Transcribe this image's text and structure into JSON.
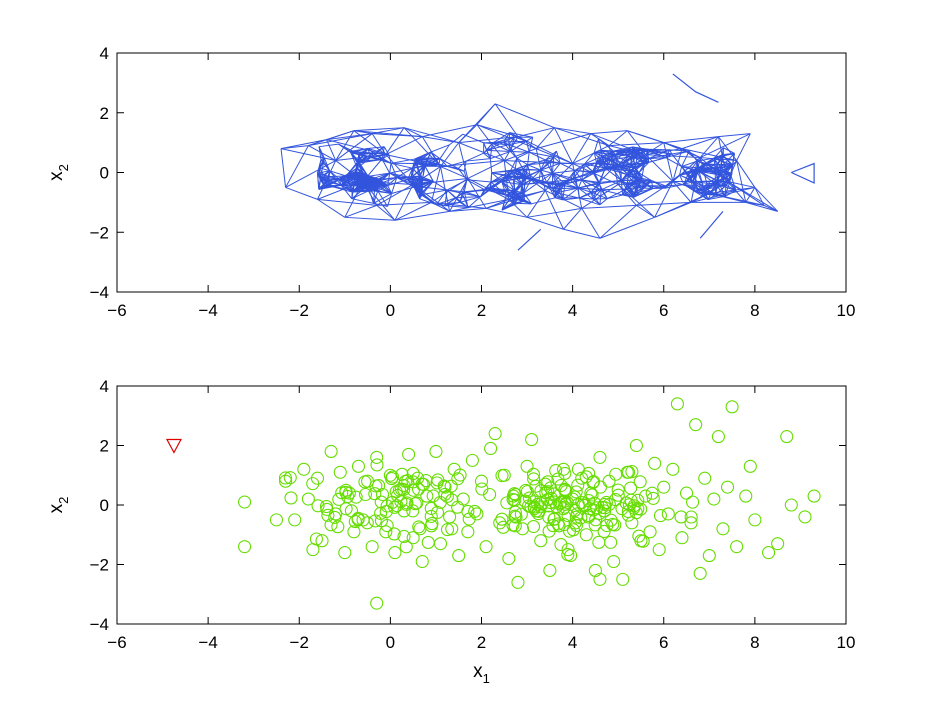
{
  "chart_data": [
    {
      "type": "line",
      "xlabel": "",
      "ylabel": "x_2",
      "xlim": [
        -6,
        10
      ],
      "ylim": [
        -4,
        4
      ],
      "x_ticks": [
        -6,
        -4,
        -2,
        0,
        2,
        4,
        6,
        8,
        10
      ],
      "y_ticks": [
        -4,
        -2,
        0,
        2,
        4
      ],
      "x_tick_labels": [
        "−6",
        "−4",
        "−2",
        "0",
        "2",
        "4",
        "6",
        "8",
        "10"
      ],
      "y_tick_labels": [
        "−4",
        "−2",
        "0",
        "2",
        "4"
      ],
      "ylabel_main": "x",
      "ylabel_sub": "2",
      "series": [
        {
          "color": "#3355dd",
          "marker": "none",
          "description_points": [
            [
              -2.4,
              0.8
            ],
            [
              -2.3,
              -0.5
            ],
            [
              -1.8,
              0.9
            ],
            [
              -1.6,
              -0.9
            ],
            [
              -1.4,
              1.1
            ],
            [
              -1.2,
              0.4
            ],
            [
              -1.0,
              -1.5
            ],
            [
              -0.8,
              1.4
            ],
            [
              -0.6,
              -0.3
            ],
            [
              -0.4,
              1.3
            ],
            [
              -0.3,
              -1.1
            ],
            [
              -0.1,
              0.6
            ],
            [
              0.1,
              -1.6
            ],
            [
              0.3,
              1.5
            ],
            [
              0.5,
              -0.4
            ],
            [
              0.7,
              1.2
            ],
            [
              0.9,
              -1.0
            ],
            [
              1.1,
              0.2
            ],
            [
              1.3,
              -1.3
            ],
            [
              1.5,
              1.0
            ],
            [
              1.7,
              -0.2
            ],
            [
              1.9,
              1.6
            ],
            [
              2.1,
              -1.2
            ],
            [
              2.3,
              2.3
            ],
            [
              2.5,
              0.4
            ],
            [
              2.6,
              -0.9
            ],
            [
              2.8,
              1.2
            ],
            [
              3.0,
              -1.5
            ],
            [
              3.2,
              0.8
            ],
            [
              3.4,
              -0.6
            ],
            [
              3.6,
              1.5
            ],
            [
              3.8,
              -1.9
            ],
            [
              4.0,
              0.3
            ],
            [
              4.2,
              -1.2
            ],
            [
              4.4,
              1.3
            ],
            [
              4.6,
              -2.2
            ],
            [
              4.8,
              0.9
            ],
            [
              5.0,
              -0.4
            ],
            [
              5.2,
              1.4
            ],
            [
              5.4,
              -1.1
            ],
            [
              5.6,
              0.6
            ],
            [
              5.8,
              -1.5
            ],
            [
              6.0,
              1.0
            ],
            [
              6.2,
              -0.3
            ],
            [
              6.4,
              0.8
            ],
            [
              6.6,
              -1.0
            ],
            [
              6.8,
              0.5
            ],
            [
              7.0,
              -0.7
            ],
            [
              7.2,
              1.2
            ],
            [
              7.4,
              -0.3
            ],
            [
              7.6,
              0.4
            ],
            [
              7.8,
              -1.0
            ],
            [
              8.0,
              -0.5
            ],
            [
              8.2,
              -1.1
            ],
            [
              8.5,
              -1.3
            ],
            [
              7.9,
              1.3
            ]
          ],
          "extra_segments": [
            [
              [
                6.2,
                3.3
              ],
              [
                6.7,
                2.7
              ],
              [
                7.2,
                2.35
              ]
            ],
            [
              [
                8.8,
                0.0
              ],
              [
                9.3,
                0.3
              ],
              [
                9.3,
                -0.35
              ],
              [
                8.8,
                0.0
              ]
            ],
            [
              [
                2.8,
                -2.6
              ],
              [
                3.3,
                -1.9
              ]
            ],
            [
              [
                6.8,
                -2.2
              ],
              [
                7.3,
                -1.3
              ]
            ]
          ]
        }
      ]
    },
    {
      "type": "scatter",
      "xlabel": "x_1",
      "xlabel_main": "x",
      "xlabel_sub": "1",
      "ylabel": "x_2",
      "ylabel_main": "x",
      "ylabel_sub": "2",
      "xlim": [
        -6,
        10
      ],
      "ylim": [
        -4,
        4
      ],
      "x_ticks": [
        -6,
        -4,
        -2,
        0,
        2,
        4,
        6,
        8,
        10
      ],
      "y_ticks": [
        -4,
        -2,
        0,
        2,
        4
      ],
      "x_tick_labels": [
        "−6",
        "−4",
        "−2",
        "0",
        "2",
        "4",
        "6",
        "8",
        "10"
      ],
      "y_tick_labels": [
        "−4",
        "−2",
        "0",
        "2",
        "4"
      ],
      "series": [
        {
          "color": "#66dd00",
          "marker": "circle",
          "points": [
            [
              -3.2,
              0.1
            ],
            [
              -3.2,
              -1.4
            ],
            [
              -2.5,
              -0.5
            ],
            [
              -2.3,
              0.8
            ],
            [
              -2.1,
              -0.5
            ],
            [
              -1.9,
              1.2
            ],
            [
              -1.8,
              0.2
            ],
            [
              -1.7,
              -1.5
            ],
            [
              -1.6,
              0.9
            ],
            [
              -1.5,
              -1.2
            ],
            [
              -1.3,
              1.8
            ],
            [
              -1.2,
              -0.3
            ],
            [
              -1.1,
              1.1
            ],
            [
              -1.0,
              -1.6
            ],
            [
              -0.9,
              0.4
            ],
            [
              -0.8,
              -0.9
            ],
            [
              -0.7,
              1.3
            ],
            [
              -0.6,
              -0.5
            ],
            [
              -0.5,
              0.8
            ],
            [
              -0.4,
              -1.4
            ],
            [
              -0.3,
              1.6
            ],
            [
              -0.3,
              -3.3
            ],
            [
              -0.2,
              0.1
            ],
            [
              -0.1,
              -0.9
            ],
            [
              0.0,
              1.0
            ],
            [
              0.1,
              -1.6
            ],
            [
              0.2,
              0.5
            ],
            [
              0.3,
              -0.2
            ],
            [
              0.4,
              1.7
            ],
            [
              0.5,
              -1.1
            ],
            [
              0.6,
              0.9
            ],
            [
              0.7,
              -1.9
            ],
            [
              0.8,
              0.3
            ],
            [
              0.9,
              -0.7
            ],
            [
              1.0,
              1.8
            ],
            [
              1.1,
              -1.3
            ],
            [
              1.2,
              0.6
            ],
            [
              1.3,
              -0.4
            ],
            [
              1.4,
              1.2
            ],
            [
              1.5,
              -1.7
            ],
            [
              1.6,
              0.2
            ],
            [
              1.7,
              -0.9
            ],
            [
              1.8,
              1.5
            ],
            [
              1.9,
              -0.3
            ],
            [
              2.0,
              0.8
            ],
            [
              2.1,
              -1.4
            ],
            [
              2.2,
              1.9
            ],
            [
              2.3,
              2.4
            ],
            [
              2.4,
              -0.6
            ],
            [
              2.5,
              1.0
            ],
            [
              2.6,
              -1.8
            ],
            [
              2.7,
              0.3
            ],
            [
              2.8,
              -2.6
            ],
            [
              2.9,
              -0.8
            ],
            [
              3.0,
              1.3
            ],
            [
              3.1,
              2.2
            ],
            [
              3.2,
              -0.2
            ],
            [
              3.3,
              -1.2
            ],
            [
              3.4,
              0.7
            ],
            [
              3.5,
              -2.2
            ],
            [
              3.6,
              0.1
            ],
            [
              3.7,
              -0.7
            ],
            [
              3.8,
              1.2
            ],
            [
              3.9,
              -1.5
            ],
            [
              4.0,
              0.2
            ],
            [
              4.1,
              -0.3
            ],
            [
              4.2,
              0.9
            ],
            [
              4.3,
              -1.0
            ],
            [
              4.4,
              0.4
            ],
            [
              4.5,
              -2.2
            ],
            [
              4.6,
              1.6
            ],
            [
              4.6,
              -2.5
            ],
            [
              4.7,
              -0.2
            ],
            [
              4.8,
              0.8
            ],
            [
              4.9,
              -1.9
            ],
            [
              5.0,
              0.5
            ],
            [
              5.1,
              -2.5
            ],
            [
              5.2,
              1.1
            ],
            [
              5.3,
              -0.6
            ],
            [
              5.4,
              2.0
            ],
            [
              5.5,
              -1.2
            ],
            [
              5.6,
              0.3
            ],
            [
              5.7,
              -0.9
            ],
            [
              5.8,
              1.4
            ],
            [
              5.9,
              -1.5
            ],
            [
              6.0,
              0.6
            ],
            [
              6.1,
              -0.3
            ],
            [
              6.2,
              1.2
            ],
            [
              6.3,
              3.4
            ],
            [
              6.4,
              -1.1
            ],
            [
              6.5,
              0.4
            ],
            [
              6.6,
              -0.6
            ],
            [
              6.7,
              2.7
            ],
            [
              6.8,
              -2.3
            ],
            [
              6.9,
              0.9
            ],
            [
              7.0,
              -1.7
            ],
            [
              7.1,
              0.2
            ],
            [
              7.2,
              2.3
            ],
            [
              7.3,
              -0.8
            ],
            [
              7.4,
              0.6
            ],
            [
              7.5,
              3.3
            ],
            [
              7.6,
              -1.4
            ],
            [
              7.8,
              0.3
            ],
            [
              7.9,
              1.3
            ],
            [
              8.0,
              -0.5
            ],
            [
              8.3,
              -1.6
            ],
            [
              8.5,
              -1.3
            ],
            [
              8.7,
              2.3
            ],
            [
              8.8,
              0.0
            ],
            [
              9.1,
              -0.4
            ],
            [
              9.3,
              0.3
            ]
          ]
        },
        {
          "color": "#dd0000",
          "marker": "triangle-down",
          "points": [
            [
              -4.75,
              2.0
            ]
          ]
        }
      ]
    }
  ]
}
